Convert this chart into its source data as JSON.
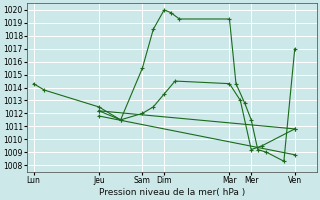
{
  "background_color": "#cce8e8",
  "grid_color": "#a8d8d8",
  "line_color": "#1a6b1a",
  "marker_color": "#1a6b1a",
  "title": "Pression niveau de la mer( hPa )",
  "ylim": [
    1007.5,
    1020.5
  ],
  "yticks": [
    1008,
    1009,
    1010,
    1011,
    1012,
    1013,
    1014,
    1015,
    1016,
    1017,
    1018,
    1019,
    1020
  ],
  "xtick_labels": [
    "Lun",
    "Jeu",
    "Sam",
    "Dim",
    "Mar",
    "Mer",
    "Ven"
  ],
  "xtick_positions": [
    0,
    3,
    5,
    6,
    9,
    10,
    12
  ],
  "xlim": [
    -0.3,
    13.0
  ],
  "series": [
    {
      "x": [
        0,
        0.5,
        3,
        4,
        5,
        5.5,
        6,
        6.3,
        6.7,
        9,
        9.3,
        9.7,
        10,
        10.3,
        10.7,
        11.5,
        12
      ],
      "y": [
        1014.3,
        1013.8,
        1012.5,
        1011.5,
        1015.5,
        1018.5,
        1020.0,
        1019.8,
        1019.3,
        1019.3,
        1014.3,
        1012.8,
        1011.5,
        1009.2,
        1009.0,
        1008.3,
        1017.0
      ]
    },
    {
      "x": [
        3,
        4,
        5,
        5.5,
        6,
        6.5,
        9,
        9.5,
        10,
        10.5,
        12
      ],
      "y": [
        1012.2,
        1011.5,
        1012.0,
        1012.5,
        1013.5,
        1014.5,
        1014.3,
        1013.0,
        1009.2,
        1009.5,
        1010.8
      ]
    },
    {
      "x": [
        3,
        12
      ],
      "y": [
        1011.8,
        1008.8
      ]
    },
    {
      "x": [
        3,
        12
      ],
      "y": [
        1012.2,
        1010.8
      ]
    }
  ]
}
